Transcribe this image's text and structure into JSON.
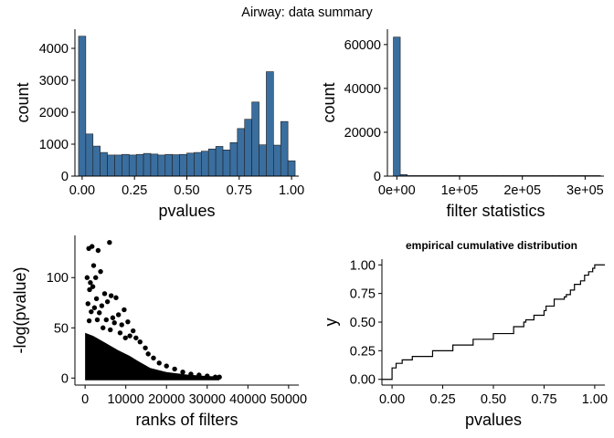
{
  "page": {
    "title": "Airway: data summary"
  },
  "colors": {
    "bar_fill": "#3A6E9F",
    "bar_stroke": "#1f1f1f",
    "axis": "#000000",
    "point": "#000000",
    "line": "#000000"
  },
  "chart_data": [
    {
      "id": "pvalue-hist",
      "type": "bar",
      "title": "",
      "xlabel": "pvalues",
      "ylabel": "count",
      "xlim": [
        -0.0345,
        1.0345
      ],
      "ylim": [
        0,
        4600
      ],
      "xticks": [
        0.0,
        0.25,
        0.5,
        0.75,
        1.0
      ],
      "xtick_labels": [
        "0.00",
        "0.25",
        "0.50",
        "0.75",
        "1.00"
      ],
      "yticks": [
        0,
        1000,
        2000,
        3000,
        4000
      ],
      "ytick_labels": [
        "0",
        "1000",
        "2000",
        "3000",
        "4000"
      ],
      "bin_width": 0.0345,
      "bin_centers": [
        0.0,
        0.0345,
        0.069,
        0.1034,
        0.1379,
        0.1724,
        0.2069,
        0.2414,
        0.2759,
        0.3103,
        0.3448,
        0.3793,
        0.4138,
        0.4483,
        0.4828,
        0.5172,
        0.5517,
        0.5862,
        0.6207,
        0.6552,
        0.6897,
        0.7241,
        0.7586,
        0.7931,
        0.8276,
        0.8621,
        0.8966,
        0.931,
        0.9655,
        1.0
      ],
      "values": [
        4380,
        1320,
        940,
        740,
        660,
        660,
        680,
        660,
        680,
        710,
        690,
        660,
        680,
        670,
        680,
        720,
        740,
        780,
        850,
        930,
        820,
        1050,
        1490,
        1780,
        2320,
        980,
        3270,
        970,
        1710,
        480
      ]
    },
    {
      "id": "filter-hist",
      "type": "bar",
      "title": "",
      "xlabel": "filter statistics",
      "ylabel": "count",
      "xlim": [
        -15000,
        330000
      ],
      "ylim": [
        0,
        67000
      ],
      "xticks": [
        0,
        100000,
        200000,
        300000
      ],
      "xtick_labels": [
        "0e+00",
        "1e+05",
        "2e+05",
        "3e+05"
      ],
      "yticks": [
        0,
        20000,
        40000,
        60000
      ],
      "ytick_labels": [
        "0",
        "20000",
        "40000",
        "60000"
      ],
      "bin_width": 11000,
      "bin_centers": [
        0,
        11000,
        22000,
        33000,
        44000,
        55000,
        66000,
        77000,
        88000,
        99000,
        110000,
        121000,
        132000,
        143000,
        154000,
        165000,
        176000,
        187000,
        198000,
        209000,
        220000,
        231000,
        242000,
        253000,
        264000,
        275000,
        286000,
        297000,
        308000,
        319000
      ],
      "values": [
        63400,
        700,
        150,
        60,
        30,
        20,
        10,
        10,
        5,
        5,
        0,
        0,
        0,
        0,
        0,
        0,
        0,
        0,
        0,
        0,
        0,
        0,
        0,
        0,
        0,
        0,
        0,
        0,
        0,
        3
      ]
    },
    {
      "id": "rank-scatter",
      "type": "scatter",
      "title": "",
      "xlabel": "ranks of filters",
      "ylabel": "-log(pvalue)",
      "xlim": [
        -2500,
        52500
      ],
      "ylim": [
        -7,
        142
      ],
      "xticks": [
        0,
        10000,
        20000,
        30000,
        40000,
        50000
      ],
      "xtick_labels": [
        "0",
        "10000",
        "20000",
        "30000",
        "40000",
        "50000"
      ],
      "yticks": [
        0,
        50,
        100
      ],
      "ytick_labels": [
        "0",
        "50",
        "100"
      ],
      "points": [
        [
          900,
          129
        ],
        [
          1700,
          131
        ],
        [
          6000,
          135
        ],
        [
          3200,
          127
        ],
        [
          2100,
          112
        ],
        [
          500,
          100
        ],
        [
          1300,
          95
        ],
        [
          2600,
          100
        ],
        [
          3800,
          106
        ],
        [
          1900,
          91
        ],
        [
          4800,
          84
        ],
        [
          6400,
          82
        ],
        [
          5500,
          76
        ],
        [
          7600,
          80
        ],
        [
          1100,
          88
        ],
        [
          2800,
          79
        ],
        [
          4100,
          72
        ],
        [
          3500,
          65
        ],
        [
          9600,
          68
        ],
        [
          8200,
          63
        ],
        [
          6800,
          60
        ],
        [
          10500,
          56
        ],
        [
          2300,
          70
        ],
        [
          700,
          74
        ],
        [
          1500,
          66
        ],
        [
          5200,
          58
        ],
        [
          9000,
          53
        ],
        [
          11800,
          47
        ],
        [
          7200,
          55
        ],
        [
          3000,
          58
        ],
        [
          12500,
          40
        ],
        [
          13500,
          36
        ],
        [
          14800,
          30
        ],
        [
          11000,
          42
        ],
        [
          4400,
          50
        ],
        [
          8600,
          45
        ],
        [
          1000,
          57
        ],
        [
          15500,
          24
        ],
        [
          16800,
          20
        ],
        [
          18200,
          15
        ],
        [
          20000,
          12
        ],
        [
          22000,
          9
        ],
        [
          24000,
          6
        ],
        [
          26000,
          4
        ],
        [
          28000,
          3
        ],
        [
          30000,
          2
        ],
        [
          32000,
          1
        ],
        [
          33000,
          1
        ],
        [
          6200,
          48
        ],
        [
          9900,
          40
        ]
      ],
      "dense_band": {
        "x_end": 33000,
        "upper": [
          [
            0,
            45
          ],
          [
            2000,
            42
          ],
          [
            5000,
            35
          ],
          [
            8000,
            28
          ],
          [
            11000,
            22
          ],
          [
            13000,
            17
          ],
          [
            16000,
            10
          ],
          [
            20000,
            6
          ],
          [
            25000,
            3.5
          ],
          [
            30000,
            2
          ],
          [
            33000,
            1.5
          ]
        ]
      }
    },
    {
      "id": "ecdf",
      "type": "line",
      "title": "empirical cumulative distribution",
      "xlabel": "pvalues",
      "ylabel": "y",
      "xlim": [
        -0.05,
        1.05
      ],
      "ylim": [
        -0.05,
        1.05
      ],
      "xticks": [
        0.0,
        0.25,
        0.5,
        0.75,
        1.0
      ],
      "xtick_labels": [
        "0.00",
        "0.25",
        "0.50",
        "0.75",
        "1.00"
      ],
      "yticks": [
        0.0,
        0.25,
        0.5,
        0.75,
        1.0
      ],
      "ytick_labels": [
        "0.00",
        "0.25",
        "0.50",
        "0.75",
        "1.00"
      ],
      "x": [
        -0.05,
        0.0,
        0.0,
        0.02,
        0.05,
        0.1,
        0.2,
        0.3,
        0.4,
        0.5,
        0.6,
        0.65,
        0.66,
        0.7,
        0.75,
        0.76,
        0.8,
        0.8,
        0.85,
        0.86,
        0.88,
        0.9,
        0.9,
        0.93,
        0.95,
        0.97,
        0.99,
        1.0,
        1.05
      ],
      "y": [
        0.0,
        0.0,
        0.1,
        0.14,
        0.17,
        0.2,
        0.25,
        0.3,
        0.35,
        0.4,
        0.46,
        0.5,
        0.52,
        0.56,
        0.6,
        0.64,
        0.66,
        0.7,
        0.72,
        0.74,
        0.78,
        0.79,
        0.83,
        0.86,
        0.91,
        0.94,
        0.97,
        1.0,
        1.0
      ]
    }
  ]
}
